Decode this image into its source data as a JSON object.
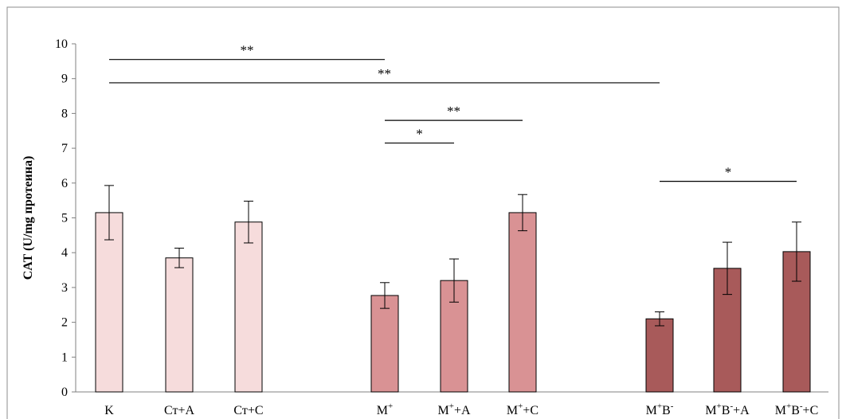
{
  "chart_data": {
    "type": "bar",
    "ylabel": "CAT (U/mg протеина)",
    "ylim": [
      0,
      10
    ],
    "yticks": [
      "0",
      "1",
      "2",
      "3",
      "4",
      "5",
      "6",
      "7",
      "8",
      "9",
      "10"
    ],
    "grid": false,
    "legend": "none",
    "categories": [
      {
        "label": "K",
        "sup": "",
        "label2": "",
        "sup2": "",
        "label3": ""
      },
      {
        "label": "Ст+А",
        "sup": "",
        "label2": "",
        "sup2": "",
        "label3": ""
      },
      {
        "label": "Ст+С",
        "sup": "",
        "label2": "",
        "sup2": "",
        "label3": ""
      },
      {
        "label": "M",
        "sup": "+",
        "label2": "",
        "sup2": "",
        "label3": ""
      },
      {
        "label": "M",
        "sup": "+",
        "label2": "+A",
        "sup2": "",
        "label3": ""
      },
      {
        "label": "M",
        "sup": "+",
        "label2": "+C",
        "sup2": "",
        "label3": ""
      },
      {
        "label": "M",
        "sup": "+",
        "label2": "B",
        "sup2": "-",
        "label3": ""
      },
      {
        "label": "M",
        "sup": "+",
        "label2": "B",
        "sup2": "-",
        "label3": "+A"
      },
      {
        "label": "M",
        "sup": "+",
        "label2": "B",
        "sup2": "-",
        "label3": "+C"
      }
    ],
    "values": [
      5.15,
      3.85,
      4.88,
      2.77,
      3.2,
      5.15,
      2.1,
      3.55,
      4.03
    ],
    "errors": [
      0.78,
      0.28,
      0.6,
      0.37,
      0.62,
      0.52,
      0.2,
      0.75,
      0.85
    ],
    "colors": [
      "#f6dcdc",
      "#f6dcdc",
      "#f6dcdc",
      "#d99294",
      "#d99294",
      "#d99294",
      "#a85a5a",
      "#a85a5a",
      "#a85a5a"
    ],
    "significance": [
      {
        "from": 0,
        "to": 3,
        "y": 9.55,
        "label": "**"
      },
      {
        "from": 0,
        "to": 6,
        "y": 8.88,
        "label": "**"
      },
      {
        "from": 3,
        "to": 5,
        "y": 7.8,
        "label": "**"
      },
      {
        "from": 3,
        "to": 4,
        "y": 7.15,
        "label": "*"
      },
      {
        "from": 6,
        "to": 8,
        "y": 6.05,
        "label": "*"
      }
    ]
  }
}
